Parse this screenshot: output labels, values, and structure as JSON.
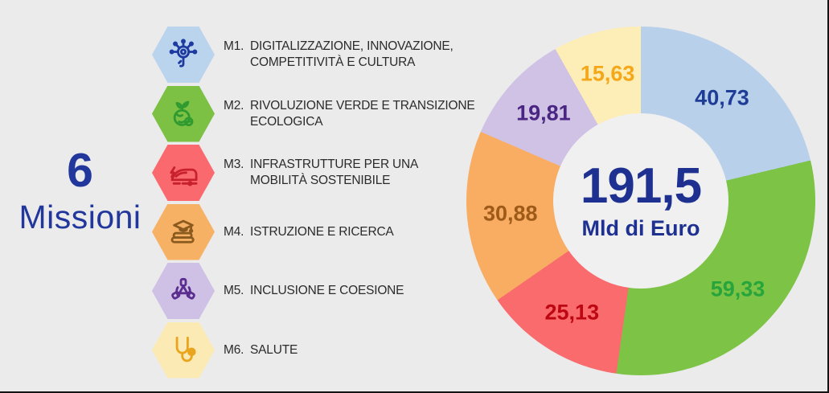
{
  "page": {
    "background": "#ebebec",
    "edge_border_color": "#141414"
  },
  "left_panel": {
    "count": "6",
    "label": "Missioni",
    "color": "#21379b"
  },
  "missions": [
    {
      "id": "M1.",
      "title": "DIGITALIZZAZIONE, INNOVAZIONE,\nCOMPETITIVITÀ E CULTURA",
      "hex_color": "#b9d4ec",
      "icon": "digital-touch-icon",
      "icon_color": "#1e3aa0"
    },
    {
      "id": "M2.",
      "title": "RIVOLUZIONE VERDE E TRANSIZIONE\nECOLOGICA",
      "hex_color": "#7cc143",
      "icon": "globe-sprout-icon",
      "icon_color": "#2f9a2f"
    },
    {
      "id": "M3.",
      "title": "INFRASTRUTTURE PER UNA\nMOBILITÀ SOSTENIBILE",
      "hex_color": "#f9696d",
      "icon": "train-icon",
      "icon_color": "#c8202e"
    },
    {
      "id": "M4.",
      "title": "ISTRUZIONE E RICERCA",
      "hex_color": "#f7b165",
      "icon": "graduation-books-icon",
      "icon_color": "#8a5a1e"
    },
    {
      "id": "M5.",
      "title": "INCLUSIONE E COESIONE",
      "hex_color": "#cfc0e6",
      "icon": "joined-hands-icon",
      "icon_color": "#5b2d8f"
    },
    {
      "id": "M6.",
      "title": "SALUTE",
      "hex_color": "#fbeab4",
      "icon": "stethoscope-icon",
      "icon_color": "#e8a51d"
    }
  ],
  "chart_data": {
    "type": "pie",
    "subtype": "donut",
    "title": "PNRR allocation by mission (Mld di Euro)",
    "direction": "clockwise",
    "start_angle_deg": 0,
    "center_total_value": "191,5",
    "center_total_unit": "Mld di Euro",
    "center_text_color": "#1e3191",
    "total_numeric": 191.5,
    "categories": [
      "M1 Digitalizzazione, innovazione, competitività e cultura",
      "M2 Rivoluzione verde e transizione ecologica",
      "M3 Infrastrutture per una mobilità sostenibile",
      "M4 Istruzione e ricerca",
      "M5 Inclusione e coesione",
      "M6 Salute"
    ],
    "segments": [
      {
        "mission": "M1",
        "label": "40,73",
        "value": 40.73,
        "color": "#b8d0ea",
        "label_color": "#1f3c96"
      },
      {
        "mission": "M2",
        "label": "59,33",
        "value": 59.33,
        "color": "#7dc345",
        "label_color": "#27a53c"
      },
      {
        "mission": "M3",
        "label": "25,13",
        "value": 25.13,
        "color": "#fa6b6e",
        "label_color": "#bd0712"
      },
      {
        "mission": "M4",
        "label": "30,88",
        "value": 30.88,
        "color": "#f8ad63",
        "label_color": "#9e5a18"
      },
      {
        "mission": "M5",
        "label": "19,81",
        "value": 19.81,
        "color": "#cfc2e5",
        "label_color": "#4a2583"
      },
      {
        "mission": "M6",
        "label": "15,63",
        "value": 15.63,
        "color": "#fdedb6",
        "label_color": "#f5a71a"
      }
    ]
  }
}
